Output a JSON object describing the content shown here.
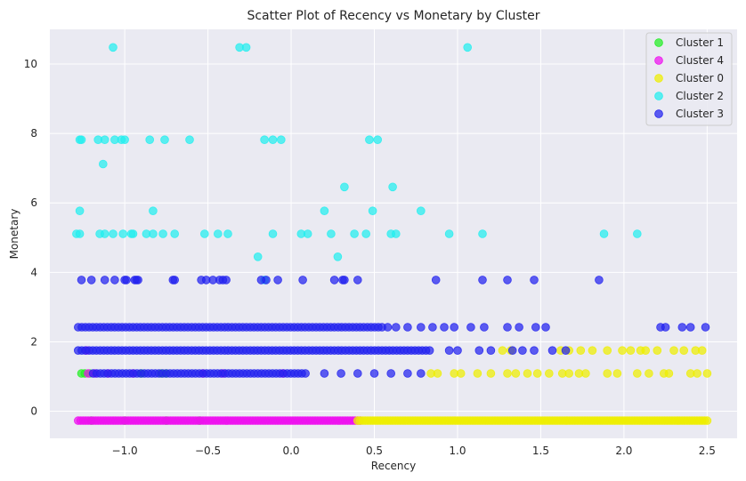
{
  "chart_data": {
    "type": "scatter",
    "title": "Scatter Plot of Recency vs Monetary by Cluster",
    "xlabel": "Recency",
    "ylabel": "Monetary",
    "xlim": [
      -1.45,
      2.68
    ],
    "ylim": [
      -0.78,
      11.0
    ],
    "xticks": [
      -1.0,
      -0.5,
      0.0,
      0.5,
      1.0,
      1.5,
      2.0,
      2.5
    ],
    "xtick_labels": [
      "−1.0",
      "−0.5",
      "0.0",
      "0.5",
      "1.0",
      "1.5",
      "2.0",
      "2.5"
    ],
    "yticks": [
      0,
      2,
      4,
      6,
      8,
      10
    ],
    "ytick_labels": [
      "0",
      "2",
      "4",
      "6",
      "8",
      "10"
    ],
    "grid": true,
    "background": "#eaeaf2",
    "legend_position": "top-right",
    "legend_order": [
      0,
      1,
      2,
      3,
      4
    ],
    "series": [
      {
        "name": "Cluster 1",
        "color": "#22ee22",
        "points": [
          [
            -1.26,
            1.09
          ],
          [
            -1.24,
            1.09
          ],
          [
            -1.21,
            1.09
          ],
          [
            -0.78,
            1.09
          ],
          [
            -0.75,
            1.09
          ],
          [
            -0.9,
            1.09
          ],
          [
            -1.2,
            -0.27
          ],
          [
            -1.0,
            -0.27
          ],
          [
            -0.75,
            -0.27
          ],
          [
            -0.55,
            -0.27
          ]
        ]
      },
      {
        "name": "Cluster 4",
        "color": "#ee11ee",
        "segments": [
          {
            "y": -0.27,
            "from": -1.28,
            "to": 0.42,
            "step": 0.015
          }
        ],
        "points": [
          [
            -1.23,
            1.75
          ],
          [
            -1.22,
            1.09
          ],
          [
            -1.18,
            1.09
          ],
          [
            -1.1,
            1.09
          ],
          [
            -0.95,
            1.09
          ],
          [
            -0.53,
            1.09
          ],
          [
            -0.41,
            1.09
          ],
          [
            -0.05,
            1.09
          ]
        ]
      },
      {
        "name": "Cluster 0",
        "color": "#eeee00",
        "segments": [
          {
            "y": -0.27,
            "from": 0.4,
            "to": 2.5,
            "step": 0.015
          }
        ],
        "points": [
          [
            0.84,
            1.09
          ],
          [
            0.88,
            1.09
          ],
          [
            0.98,
            1.09
          ],
          [
            1.02,
            1.09
          ],
          [
            1.12,
            1.09
          ],
          [
            1.2,
            1.09
          ],
          [
            1.3,
            1.09
          ],
          [
            1.35,
            1.09
          ],
          [
            1.42,
            1.09
          ],
          [
            1.48,
            1.09
          ],
          [
            1.55,
            1.09
          ],
          [
            1.63,
            1.09
          ],
          [
            1.67,
            1.09
          ],
          [
            1.73,
            1.09
          ],
          [
            1.77,
            1.09
          ],
          [
            1.9,
            1.09
          ],
          [
            1.96,
            1.09
          ],
          [
            2.08,
            1.09
          ],
          [
            2.15,
            1.09
          ],
          [
            2.24,
            1.09
          ],
          [
            2.27,
            1.09
          ],
          [
            2.4,
            1.09
          ],
          [
            2.44,
            1.09
          ],
          [
            2.5,
            1.09
          ],
          [
            1.27,
            1.75
          ],
          [
            1.32,
            1.75
          ],
          [
            1.62,
            1.75
          ],
          [
            1.67,
            1.75
          ],
          [
            1.74,
            1.75
          ],
          [
            1.81,
            1.75
          ],
          [
            1.9,
            1.75
          ],
          [
            1.99,
            1.75
          ],
          [
            2.04,
            1.75
          ],
          [
            2.1,
            1.75
          ],
          [
            2.13,
            1.75
          ],
          [
            2.2,
            1.75
          ],
          [
            2.3,
            1.75
          ],
          [
            2.36,
            1.75
          ],
          [
            2.43,
            1.75
          ],
          [
            2.47,
            1.75
          ]
        ]
      },
      {
        "name": "Cluster 2",
        "color": "#22eeee",
        "points": [
          [
            -1.07,
            10.48
          ],
          [
            -0.31,
            10.48
          ],
          [
            -0.27,
            10.48
          ],
          [
            1.06,
            10.48
          ],
          [
            -1.27,
            7.82
          ],
          [
            -1.26,
            7.82
          ],
          [
            -1.16,
            7.82
          ],
          [
            -1.12,
            7.82
          ],
          [
            -1.06,
            7.82
          ],
          [
            -1.02,
            7.82
          ],
          [
            -1.0,
            7.82
          ],
          [
            -0.85,
            7.82
          ],
          [
            -0.76,
            7.82
          ],
          [
            -0.61,
            7.82
          ],
          [
            -0.16,
            7.82
          ],
          [
            -0.11,
            7.82
          ],
          [
            -0.06,
            7.82
          ],
          [
            0.47,
            7.82
          ],
          [
            0.52,
            7.82
          ],
          [
            -1.13,
            7.12
          ],
          [
            0.32,
            6.46
          ],
          [
            0.61,
            6.46
          ],
          [
            -1.27,
            5.77
          ],
          [
            -0.83,
            5.77
          ],
          [
            0.2,
            5.77
          ],
          [
            0.49,
            5.77
          ],
          [
            0.78,
            5.77
          ],
          [
            -1.29,
            5.11
          ],
          [
            -1.27,
            5.11
          ],
          [
            -1.15,
            5.11
          ],
          [
            -1.12,
            5.11
          ],
          [
            -1.07,
            5.11
          ],
          [
            -1.01,
            5.11
          ],
          [
            -0.96,
            5.11
          ],
          [
            -0.95,
            5.11
          ],
          [
            -0.87,
            5.11
          ],
          [
            -0.83,
            5.11
          ],
          [
            -0.77,
            5.11
          ],
          [
            -0.7,
            5.11
          ],
          [
            -0.52,
            5.11
          ],
          [
            -0.44,
            5.11
          ],
          [
            -0.38,
            5.11
          ],
          [
            -0.11,
            5.11
          ],
          [
            0.06,
            5.11
          ],
          [
            0.1,
            5.11
          ],
          [
            0.24,
            5.11
          ],
          [
            0.38,
            5.11
          ],
          [
            0.45,
            5.11
          ],
          [
            0.6,
            5.11
          ],
          [
            0.63,
            5.11
          ],
          [
            0.95,
            5.11
          ],
          [
            1.15,
            5.11
          ],
          [
            1.88,
            5.11
          ],
          [
            2.08,
            5.11
          ],
          [
            -0.2,
            4.45
          ],
          [
            0.28,
            4.45
          ],
          [
            -0.16,
            3.78
          ]
        ]
      },
      {
        "name": "Cluster 3",
        "color": "#2222ee",
        "segments": [
          {
            "y": 2.42,
            "from": -1.28,
            "to": 0.55,
            "step": 0.022
          },
          {
            "y": 1.75,
            "from": -1.28,
            "to": 0.85,
            "step": 0.022
          },
          {
            "y": 1.09,
            "from": -1.19,
            "to": 0.1,
            "step": 0.022
          }
        ],
        "points": [
          [
            -1.26,
            3.78
          ],
          [
            -1.2,
            3.78
          ],
          [
            -1.12,
            3.78
          ],
          [
            -1.06,
            3.78
          ],
          [
            -1.0,
            3.78
          ],
          [
            -0.99,
            3.78
          ],
          [
            -0.94,
            3.78
          ],
          [
            -0.93,
            3.78
          ],
          [
            -0.92,
            3.78
          ],
          [
            -0.71,
            3.78
          ],
          [
            -0.7,
            3.78
          ],
          [
            -0.54,
            3.78
          ],
          [
            -0.51,
            3.78
          ],
          [
            -0.47,
            3.78
          ],
          [
            -0.43,
            3.78
          ],
          [
            -0.41,
            3.78
          ],
          [
            -0.39,
            3.78
          ],
          [
            -0.18,
            3.78
          ],
          [
            -0.15,
            3.78
          ],
          [
            -0.08,
            3.78
          ],
          [
            0.07,
            3.78
          ],
          [
            0.26,
            3.78
          ],
          [
            0.31,
            3.78
          ],
          [
            0.32,
            3.78
          ],
          [
            0.4,
            3.78
          ],
          [
            0.87,
            3.78
          ],
          [
            1.15,
            3.78
          ],
          [
            1.3,
            3.78
          ],
          [
            1.46,
            3.78
          ],
          [
            1.85,
            3.78
          ],
          [
            0.58,
            2.42
          ],
          [
            0.63,
            2.42
          ],
          [
            0.7,
            2.42
          ],
          [
            0.78,
            2.42
          ],
          [
            0.85,
            2.42
          ],
          [
            0.92,
            2.42
          ],
          [
            0.98,
            2.42
          ],
          [
            1.08,
            2.42
          ],
          [
            1.16,
            2.42
          ],
          [
            1.3,
            2.42
          ],
          [
            1.37,
            2.42
          ],
          [
            1.47,
            2.42
          ],
          [
            1.53,
            2.42
          ],
          [
            2.22,
            2.42
          ],
          [
            2.25,
            2.42
          ],
          [
            2.35,
            2.42
          ],
          [
            2.4,
            2.42
          ],
          [
            2.49,
            2.42
          ],
          [
            0.95,
            1.75
          ],
          [
            1.0,
            1.75
          ],
          [
            1.13,
            1.75
          ],
          [
            1.2,
            1.75
          ],
          [
            1.33,
            1.75
          ],
          [
            1.39,
            1.75
          ],
          [
            1.46,
            1.75
          ],
          [
            1.57,
            1.75
          ],
          [
            1.65,
            1.75
          ],
          [
            0.2,
            1.09
          ],
          [
            0.3,
            1.09
          ],
          [
            0.4,
            1.09
          ],
          [
            0.5,
            1.09
          ],
          [
            0.6,
            1.09
          ],
          [
            0.7,
            1.09
          ],
          [
            0.78,
            1.09
          ]
        ]
      }
    ]
  }
}
